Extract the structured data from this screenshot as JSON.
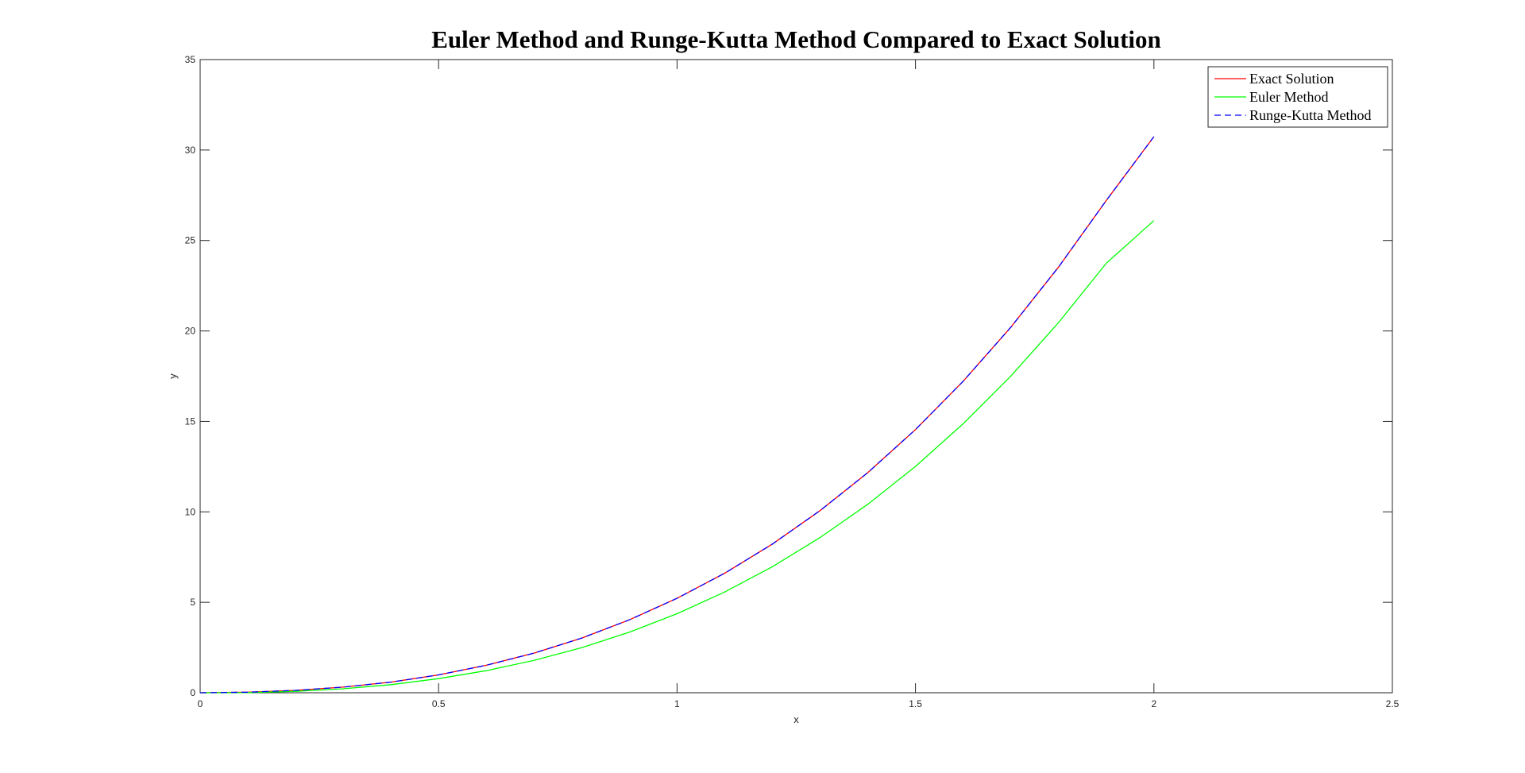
{
  "chart_data": {
    "type": "line",
    "title": "Euler Method and Runge-Kutta Method Compared to Exact Solution",
    "xlabel": "x",
    "ylabel": "y",
    "xlim": [
      0,
      2.5
    ],
    "ylim": [
      0,
      35
    ],
    "xticks": [
      0,
      0.5,
      1,
      1.5,
      2,
      2.5
    ],
    "yticks": [
      0,
      5,
      10,
      15,
      20,
      25,
      30,
      35
    ],
    "xtick_labels": [
      "0",
      "0.5",
      "1",
      "1.5",
      "2",
      "2.5"
    ],
    "ytick_labels": [
      "0",
      "5",
      "10",
      "15",
      "20",
      "25",
      "30",
      "35"
    ],
    "grid": false,
    "legend_position": "top-right",
    "x": [
      0,
      0.1,
      0.2,
      0.3,
      0.4,
      0.5,
      0.6,
      0.7,
      0.8,
      0.9,
      1.0,
      1.1,
      1.2,
      1.3,
      1.4,
      1.5,
      1.6,
      1.7,
      1.8,
      1.9,
      2.0
    ],
    "series": [
      {
        "name": "Exact Solution",
        "color": "#ff0000",
        "dash": "solid",
        "values": [
          0,
          0.03,
          0.13,
          0.31,
          0.59,
          0.99,
          1.52,
          2.19,
          3.02,
          4.03,
          5.22,
          6.61,
          8.22,
          10.07,
          12.17,
          14.55,
          17.22,
          20.21,
          23.53,
          27.21,
          30.74
        ]
      },
      {
        "name": "Euler Method",
        "color": "#00ff00",
        "dash": "solid",
        "values": [
          0,
          0.01,
          0.08,
          0.22,
          0.45,
          0.78,
          1.22,
          1.79,
          2.49,
          3.35,
          4.37,
          5.57,
          6.97,
          8.58,
          10.42,
          12.51,
          14.87,
          17.51,
          20.46,
          23.74,
          26.1
        ]
      },
      {
        "name": "Runge-Kutta Method",
        "color": "#0000ff",
        "dash": "dashed",
        "values": [
          0,
          0.03,
          0.13,
          0.31,
          0.59,
          0.99,
          1.52,
          2.19,
          3.02,
          4.03,
          5.22,
          6.61,
          8.22,
          10.07,
          12.17,
          14.55,
          17.22,
          20.21,
          23.53,
          27.21,
          30.74
        ]
      }
    ]
  }
}
